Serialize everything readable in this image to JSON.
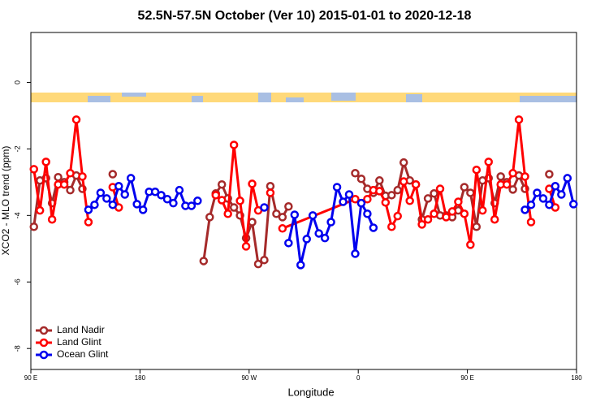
{
  "chart_data": {
    "type": "line",
    "title": "52.5N-57.5N October (Ver 10)   2015-01-01 to 2020-12-18",
    "xlabel": "Longitude",
    "ylabel": "XCO2 - MLO trend (ppm)",
    "xlim": [
      90,
      540
    ],
    "ylim": [
      -8.63,
      1.5
    ],
    "xticks": [
      {
        "value": 90,
        "label": "90 E"
      },
      {
        "value": 180,
        "label": "180"
      },
      {
        "value": 270,
        "label": "90 W"
      },
      {
        "value": 360,
        "label": "0"
      },
      {
        "value": 450,
        "label": "90 E"
      },
      {
        "value": 540,
        "label": "180"
      }
    ],
    "yticks": [
      0,
      -2,
      -4,
      -6,
      -8
    ],
    "grid": false,
    "legend": "bottom left",
    "series": [
      {
        "name": "Land Nadir",
        "color": "#a52a2a",
        "x": [
          92.5,
          97.5,
          102.5,
          107.5,
          112.5,
          117.5,
          122.5,
          127.5,
          132.5,
          137.5,
          157.5,
          162.5,
          232.5,
          237.5,
          242.5,
          247.5,
          252.5,
          257.5,
          262.5,
          267.5,
          272.5,
          277.5,
          282.5,
          287.5,
          292.5,
          297.5,
          302.5,
          307.5,
          357.5,
          362.5,
          367.5,
          372.5,
          377.5,
          382.5,
          387.5,
          392.5,
          397.5,
          402.5,
          407.5,
          412.5,
          417.5,
          422.5,
          427.5,
          432.5,
          437.5,
          442.5,
          447.5,
          452.5,
          457.5,
          462.5,
          467.5,
          472.5,
          477.5,
          482.5,
          487.5,
          492.5,
          497.5,
          502.5,
          517.5
        ],
        "values": [
          -4.34,
          -2.95,
          -2.88,
          -3.63,
          -2.85,
          -3.0,
          -3.24,
          -2.8,
          -3.2,
          null,
          -2.76,
          null,
          -5.37,
          -4.05,
          -3.34,
          -3.07,
          -3.49,
          -3.76,
          -4.0,
          -4.68,
          -4.2,
          -5.46,
          -5.34,
          -3.12,
          -3.95,
          -4.05,
          -3.73,
          null,
          -2.73,
          -2.9,
          -3.2,
          -3.32,
          -2.95,
          -3.41,
          -3.39,
          -3.24,
          -2.41,
          -2.95,
          -3.07,
          -4.12,
          -3.49,
          -3.34,
          -4.0,
          -4.0,
          -4.05,
          -3.85,
          -3.15,
          -3.32,
          -4.34,
          -2.95,
          -2.88,
          -3.63,
          -2.83,
          -3.0,
          -3.22,
          -2.8,
          -3.2,
          null,
          -2.76
        ]
      },
      {
        "name": "Land Glint",
        "color": "#ff0000",
        "x": [
          92.5,
          97.5,
          102.5,
          107.5,
          112.5,
          117.5,
          122.5,
          127.5,
          132.5,
          137.5,
          142.5,
          157.5,
          162.5,
          167.5,
          242.5,
          247.5,
          252.5,
          257.5,
          262.5,
          267.5,
          272.5,
          277.5,
          282.5,
          287.5,
          292.5,
          297.5,
          357.5,
          362.5,
          367.5,
          372.5,
          377.5,
          382.5,
          387.5,
          392.5,
          397.5,
          402.5,
          407.5,
          412.5,
          417.5,
          422.5,
          427.5,
          432.5,
          437.5,
          442.5,
          447.5,
          452.5,
          457.5,
          462.5,
          467.5,
          472.5,
          477.5,
          482.5,
          487.5,
          492.5,
          497.5,
          502.5,
          507.5,
          517.5,
          522.5
        ],
        "values": [
          -2.61,
          -3.85,
          -2.39,
          -4.12,
          -3.07,
          -3.07,
          -2.73,
          -1.12,
          -2.83,
          -4.2,
          null,
          -3.15,
          -3.76,
          null,
          -3.39,
          -3.54,
          -3.95,
          -1.88,
          -3.56,
          -4.93,
          -3.05,
          -3.85,
          null,
          -3.32,
          null,
          -4.39,
          -3.51,
          -3.63,
          -3.51,
          -3.24,
          -3.27,
          -3.61,
          -4.34,
          -4.02,
          -2.98,
          -3.56,
          -3.07,
          -4.27,
          -4.12,
          -3.95,
          -3.2,
          -4.05,
          -3.88,
          -3.59,
          -3.95,
          -4.88,
          -2.63,
          -3.85,
          -2.39,
          -4.12,
          -3.07,
          -3.07,
          -2.73,
          -1.12,
          -2.83,
          -4.2,
          null,
          -3.2,
          -3.76
        ]
      },
      {
        "name": "Ocean Glint",
        "color": "#0000ee",
        "x": [
          137.5,
          142.5,
          147.5,
          152.5,
          157.5,
          162.5,
          167.5,
          172.5,
          177.5,
          182.5,
          187.5,
          192.5,
          197.5,
          202.5,
          207.5,
          212.5,
          217.5,
          222.5,
          227.5,
          232.5,
          282.5,
          287.5,
          302.5,
          307.5,
          312.5,
          317.5,
          322.5,
          327.5,
          332.5,
          337.5,
          342.5,
          347.5,
          352.5,
          357.5,
          362.5,
          367.5,
          372.5,
          377.5,
          497.5,
          502.5,
          507.5,
          512.5,
          517.5,
          522.5,
          527.5,
          532.5,
          537.5
        ],
        "values": [
          -3.83,
          -3.68,
          -3.32,
          -3.49,
          -3.68,
          -3.12,
          -3.37,
          -2.88,
          -3.66,
          -3.83,
          -3.29,
          -3.29,
          -3.39,
          -3.51,
          -3.63,
          -3.24,
          -3.71,
          -3.71,
          -3.56,
          null,
          -3.76,
          null,
          -4.83,
          -3.98,
          -5.49,
          -4.71,
          -4.0,
          -4.54,
          -4.68,
          -4.2,
          -3.15,
          -3.59,
          -3.37,
          -5.15,
          -3.63,
          -3.95,
          -4.37,
          null,
          -3.83,
          -3.68,
          -3.32,
          -3.49,
          -3.68,
          -3.12,
          -3.37,
          -2.88,
          -3.66
        ]
      }
    ]
  }
}
